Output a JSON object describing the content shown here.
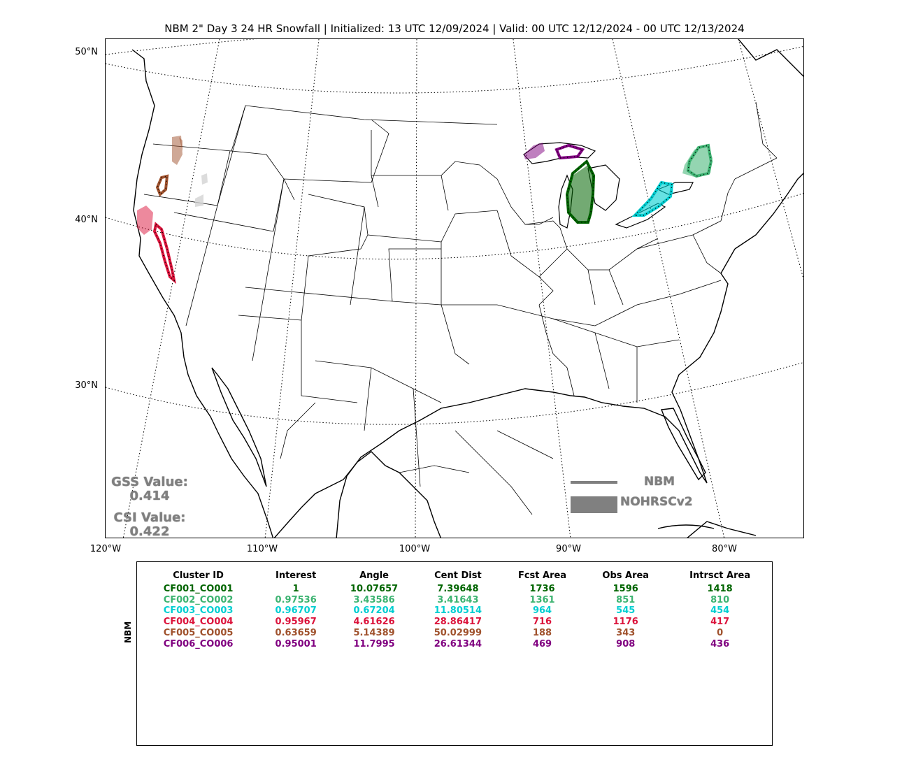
{
  "title": "NBM 2\" Day 3 24 HR Snowfall | Initialized: 13 UTC 12/09/2024 | Valid: 00 UTC 12/12/2024 - 00 UTC 12/13/2024",
  "lat_labels": [
    "50°N",
    "40°N",
    "30°N"
  ],
  "lon_labels": [
    "120°W",
    "110°W",
    "100°W",
    "90°W",
    "80°W"
  ],
  "scores": {
    "gss_label": "GSS Value:",
    "gss_value": "0.414",
    "csi_label": "CSI Value:",
    "csi_value": "0.422"
  },
  "legend": {
    "nbm_label": "NBM",
    "obs_label": "NOHRSCv2",
    "color": "#808080"
  },
  "table": {
    "side_label": "NBM",
    "headers": [
      "Cluster ID",
      "Interest",
      "Angle",
      "Cent Dist",
      "Fcst Area",
      "Obs Area",
      "Intrsct Area"
    ],
    "rows": [
      {
        "color": "#006400",
        "cells": [
          "CF001_CO001",
          "1",
          "10.07657",
          "7.39648",
          "1736",
          "1596",
          "1418"
        ]
      },
      {
        "color": "#3cb371",
        "cells": [
          "CF002_CO002",
          "0.97536",
          "3.43586",
          "3.41643",
          "1361",
          "851",
          "810"
        ]
      },
      {
        "color": "#00ced1",
        "cells": [
          "CF003_CO003",
          "0.96707",
          "0.67204",
          "11.80514",
          "964",
          "545",
          "454"
        ]
      },
      {
        "color": "#dc143c",
        "cells": [
          "CF004_CO004",
          "0.95967",
          "4.61626",
          "28.86417",
          "716",
          "1176",
          "417"
        ]
      },
      {
        "color": "#a0522d",
        "cells": [
          "CF005_CO005",
          "0.63659",
          "5.14389",
          "50.02999",
          "188",
          "343",
          "0"
        ]
      },
      {
        "color": "#800080",
        "cells": [
          "CF006_CO006",
          "0.95001",
          "11.7995",
          "26.61344",
          "469",
          "908",
          "436"
        ]
      }
    ]
  },
  "clusters": [
    {
      "name": "CF001_CO001",
      "color": "#006400"
    },
    {
      "name": "CF002_CO002",
      "color": "#3cb371"
    },
    {
      "name": "CF003_CO003",
      "color": "#00ced1"
    },
    {
      "name": "CF004_CO004",
      "color": "#dc143c"
    },
    {
      "name": "CF005_CO005",
      "color": "#a0522d"
    },
    {
      "name": "CF006_CO006",
      "color": "#800080"
    }
  ]
}
